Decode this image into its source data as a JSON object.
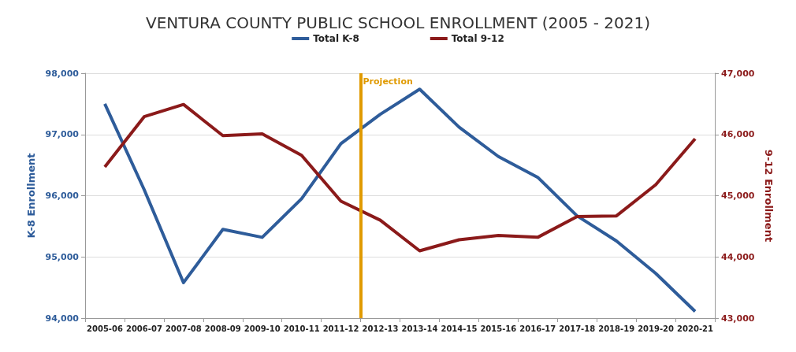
{
  "chart_data": {
    "type": "line",
    "title": "VENTURA COUNTY PUBLIC SCHOOL ENROLLMENT (2005 - 2021)",
    "ylabel": "K-8 Enrollment",
    "y2label": "9-12 Enrollment",
    "categories": [
      "2005-06",
      "2006-07",
      "2007-08",
      "2008-09",
      "2009-10",
      "2010-11",
      "2011-12",
      "2012-13",
      "2013-14",
      "2014-15",
      "2015-16",
      "2016-17",
      "2017-18",
      "2018-19",
      "2019-20",
      "2020-21"
    ],
    "series": [
      {
        "name": "Total K-8",
        "color": "#2e5c9a",
        "values": [
          97500,
          96100,
          94580,
          95450,
          95320,
          95950,
          96850,
          97330,
          97740,
          97120,
          96640,
          96300,
          95670,
          95260,
          94730,
          94110
        ]
      },
      {
        "name": "Total 9-12",
        "color": "#8b1a1a",
        "axis": "y2",
        "values": [
          45470,
          46290,
          46490,
          45980,
          46010,
          45660,
          44910,
          44600,
          44100,
          44280,
          44350,
          44320,
          44660,
          44670,
          45180,
          45930
        ]
      }
    ],
    "ylim": [
      94000,
      98000
    ],
    "yticks": [
      {
        "value": 94000,
        "label": "94,000"
      },
      {
        "value": 95000,
        "label": "95,000"
      },
      {
        "value": 96000,
        "label": "96,000"
      },
      {
        "value": 97000,
        "label": "97,000"
      },
      {
        "value": 98000,
        "label": "98,000"
      }
    ],
    "y2lim": [
      43000,
      47000
    ],
    "y2ticks": [
      {
        "value": 43000,
        "label": "43,000"
      },
      {
        "value": 44000,
        "label": "44,000"
      },
      {
        "value": 45000,
        "label": "45,000"
      },
      {
        "value": 46000,
        "label": "46,000"
      },
      {
        "value": 47000,
        "label": "47,000"
      }
    ],
    "ref_lines": [
      {
        "axis": "x",
        "value": "2012-13",
        "label": "Projection",
        "color": "#e09a00"
      }
    ],
    "grid": "y",
    "legend": "top",
    "marker": "none",
    "line_style": "solid"
  }
}
